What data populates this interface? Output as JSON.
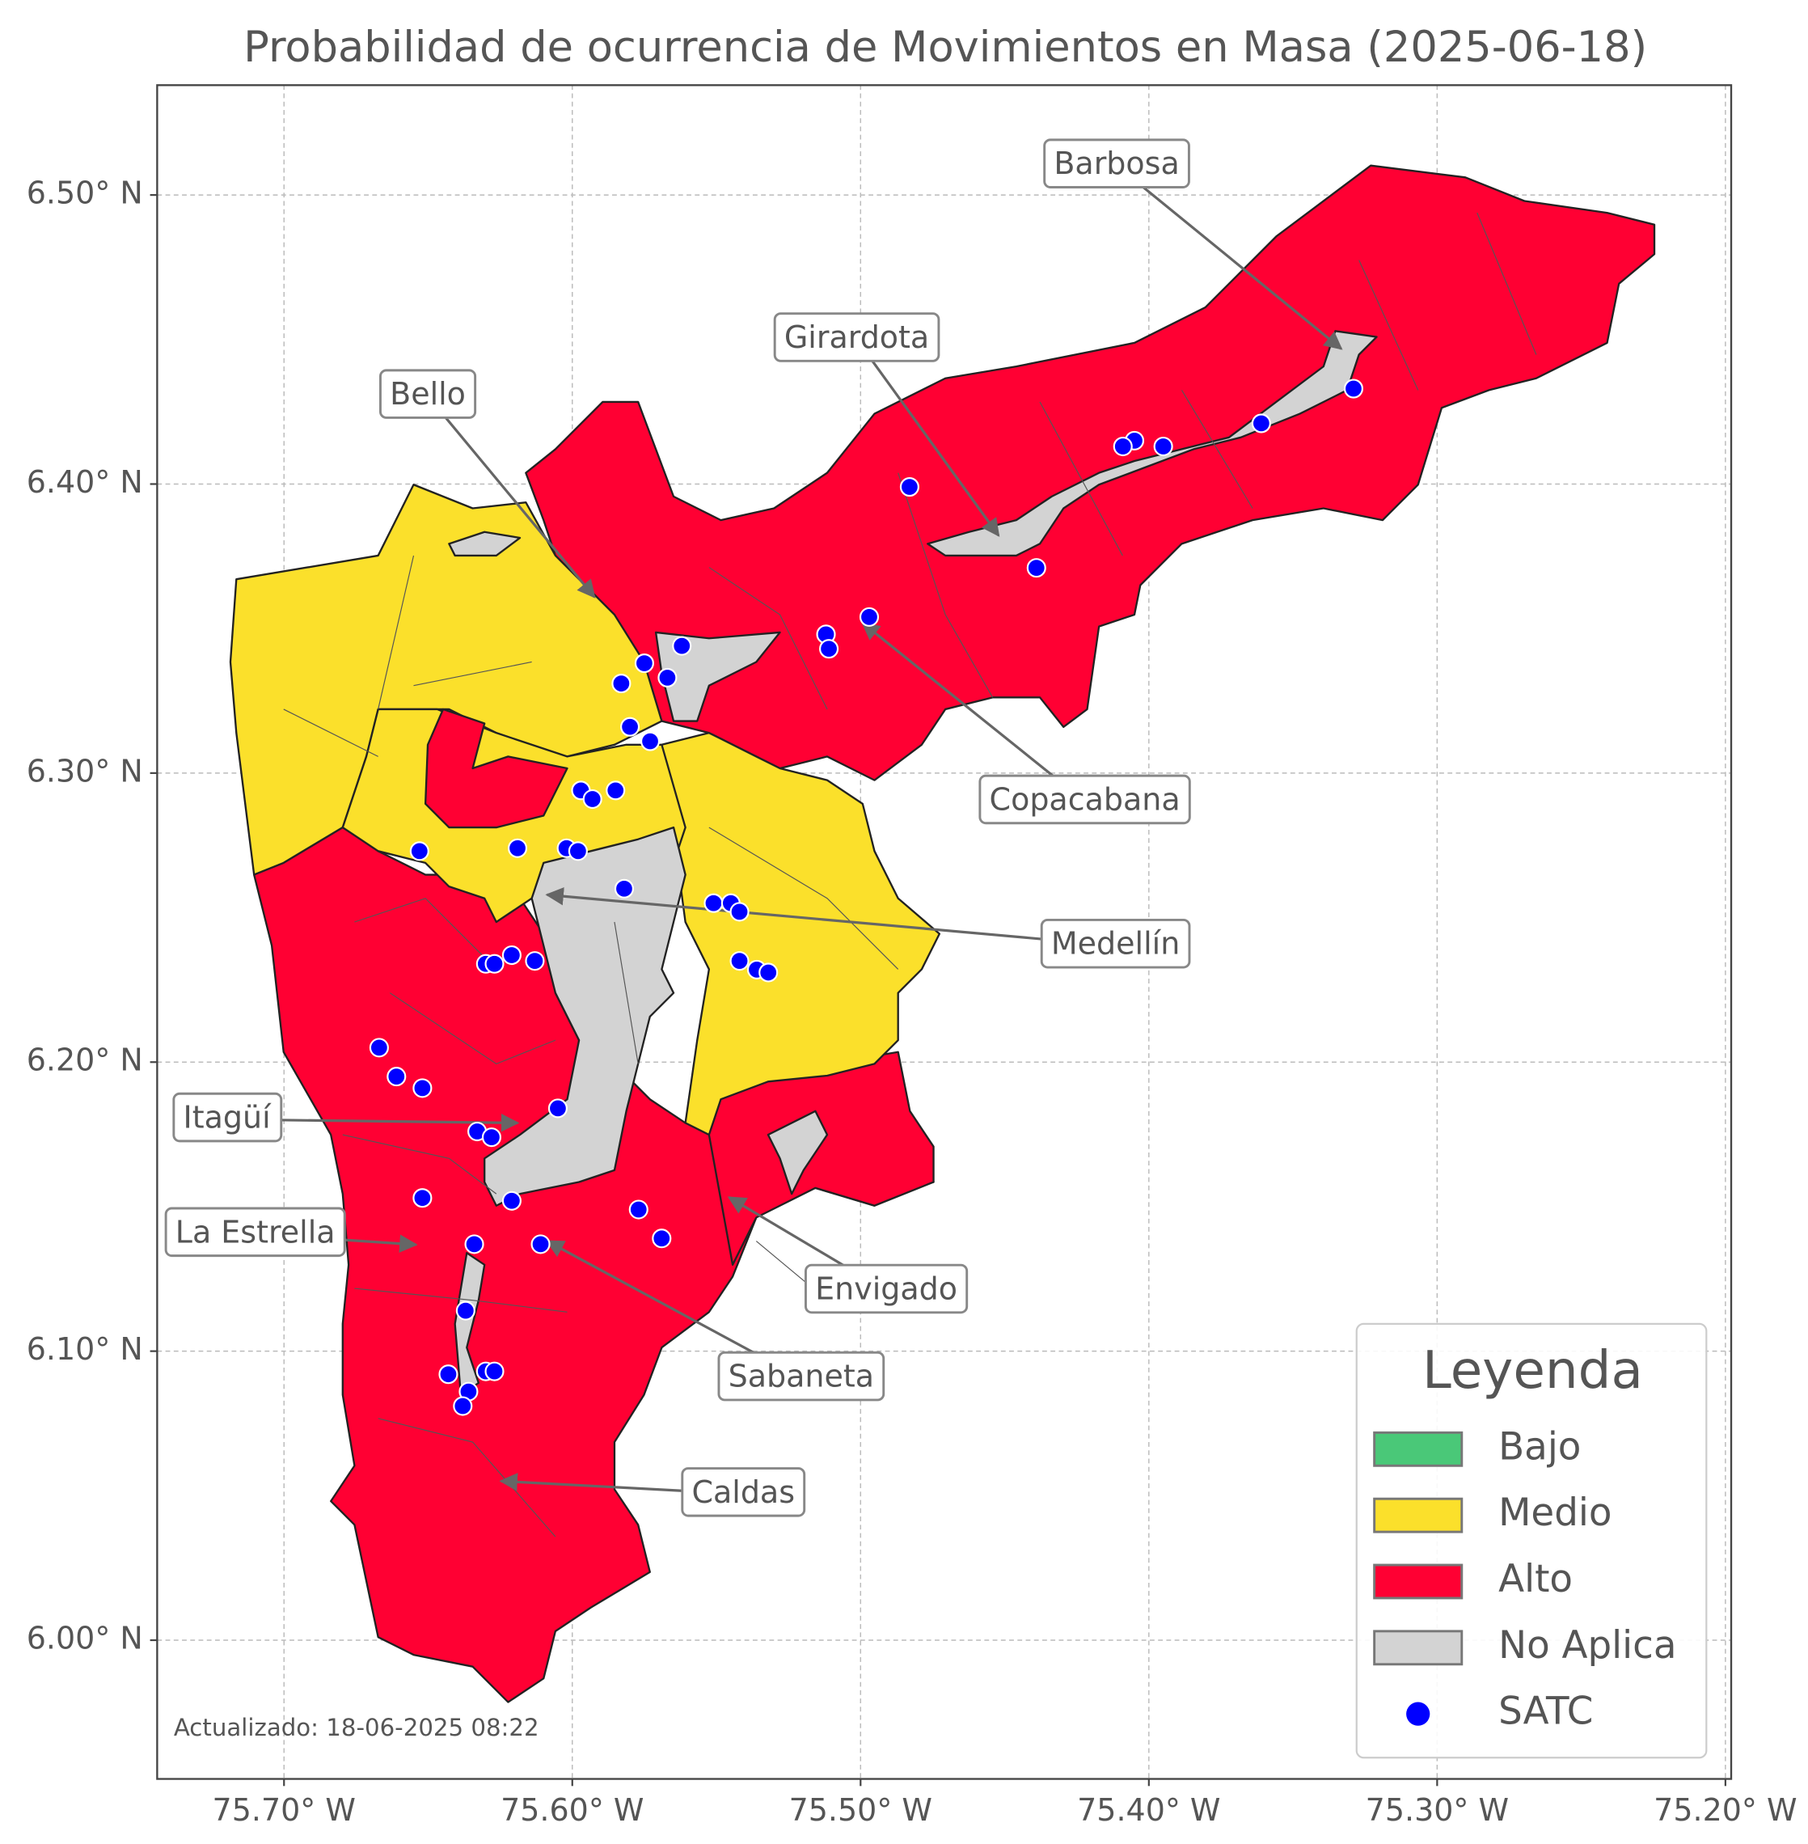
{
  "chart_data": {
    "type": "map",
    "title": "Probabilidad de ocurrencia de Movimientos en Masa (2025-06-18)",
    "xlim": [
      -75.744,
      -75.198
    ],
    "ylim": [
      5.952,
      6.538
    ],
    "xticks": [
      {
        "value": -75.7,
        "label": "75.70° W"
      },
      {
        "value": -75.6,
        "label": "75.60° W"
      },
      {
        "value": -75.5,
        "label": "75.50° W"
      },
      {
        "value": -75.4,
        "label": "75.40° W"
      },
      {
        "value": -75.3,
        "label": "75.30° W"
      },
      {
        "value": -75.2,
        "label": "75.20° W"
      }
    ],
    "yticks": [
      {
        "value": 6.0,
        "label": "6.00° N"
      },
      {
        "value": 6.1,
        "label": "6.10° N"
      },
      {
        "value": 6.2,
        "label": "6.20° N"
      },
      {
        "value": 6.3,
        "label": "6.30° N"
      },
      {
        "value": 6.4,
        "label": "6.40° N"
      },
      {
        "value": 6.5,
        "label": "6.50° N"
      }
    ],
    "grid": true,
    "legend": {
      "title": "Leyenda",
      "position": "lower right",
      "entries": [
        {
          "name": "Bajo",
          "color": "#4ac878"
        },
        {
          "name": "Medio",
          "color": "#fbe02b"
        },
        {
          "name": "Alto",
          "color": "#ff0033"
        },
        {
          "name": "No Aplica",
          "color": "#d3d3d3"
        }
      ]
    },
    "series": [
      {
        "name": "SATC",
        "color": "#0000ff",
        "x": [
          -75.329,
          -75.361,
          -75.395,
          -75.405,
          -75.409,
          -75.483,
          -75.439,
          -75.497,
          -75.512,
          -75.511,
          -75.562,
          -75.575,
          -75.567,
          -75.583,
          -75.58,
          -75.573,
          -75.597,
          -75.593,
          -75.585,
          -75.653,
          -75.619,
          -75.602,
          -75.598,
          -75.582,
          -75.551,
          -75.545,
          -75.542,
          -75.542,
          -75.536,
          -75.532,
          -75.63,
          -75.627,
          -75.621,
          -75.613,
          -75.667,
          -75.661,
          -75.652,
          -75.605,
          -75.633,
          -75.628,
          -75.621,
          -75.652,
          -75.577,
          -75.569,
          -75.634,
          -75.611,
          -75.637,
          -75.643,
          -75.63,
          -75.627,
          -75.636,
          -75.638
        ],
        "values": [
          6.433,
          6.421,
          6.413,
          6.415,
          6.413,
          6.399,
          6.371,
          6.354,
          6.348,
          6.343,
          6.344,
          6.338,
          6.333,
          6.331,
          6.316,
          6.311,
          6.294,
          6.291,
          6.294,
          6.273,
          6.274,
          6.274,
          6.273,
          6.26,
          6.255,
          6.255,
          6.252,
          6.235,
          6.232,
          6.231,
          6.234,
          6.234,
          6.237,
          6.235,
          6.205,
          6.195,
          6.191,
          6.184,
          6.176,
          6.174,
          6.152,
          6.153,
          6.149,
          6.139,
          6.137,
          6.137,
          6.114,
          6.092,
          6.093,
          6.093,
          6.086,
          6.081
        ]
      }
    ],
    "annotations": [
      "Barbosa",
      "Girardota",
      "Bello",
      "Copacabana",
      "Medellín",
      "Itagüí",
      "La Estrella",
      "Envigado",
      "Sabaneta",
      "Caldas"
    ],
    "footnote": "Actualizado: 18-06-2025 08:22"
  }
}
